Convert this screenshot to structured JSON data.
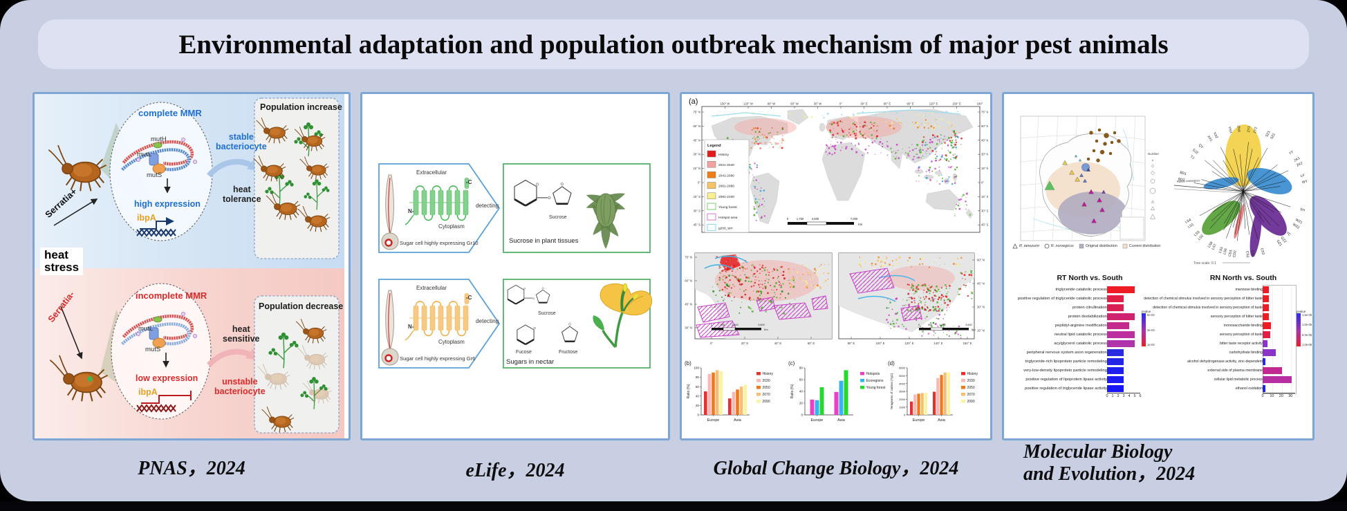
{
  "title": "Environmental adaptation and population outbreak mechanism of major pest animals",
  "citations": {
    "pnas": "PNAS，2024",
    "elife": "eLife，2024",
    "gcb": "Global Change Biology，2024",
    "mbe_line1": "Molecular Biology",
    "mbe_line2": "and Evolution，2024"
  },
  "pnas": {
    "heat_stress_line1": "heat",
    "heat_stress_line2": "stress",
    "top": {
      "serratia": "Serratia+",
      "mmr": "complete MMR",
      "muth": "mutH",
      "mutl": "mutL",
      "muts": "mutS",
      "expression": "high expression",
      "gene": "ibpA",
      "bacteriocyte_line1": "stable",
      "bacteriocyte_line2": "bacteriocyte",
      "heat_line1": "heat",
      "heat_line2": "tolerance",
      "population": "Population increase"
    },
    "bottom": {
      "serratia": "Serratia-",
      "mmr": "incomplete MMR",
      "mutl": "mutL",
      "muts": "mutS",
      "expression": "low expression",
      "gene": "ibpA",
      "bacteriocyte_line1": "unstable",
      "bacteriocyte_line2": "bacteriocyte",
      "heat_line1": "heat",
      "heat_line2": "sensitive",
      "population": "Population decrease"
    }
  },
  "elife": {
    "rows": [
      {
        "extracellular": "Extracellular",
        "cytoplasm": "Cytoplasm",
        "n_term": "N-",
        "c_term": "-C",
        "cell_label": "Sugar cell highly expressing Gr10",
        "detecting": "detecting",
        "sugar1": "Sucrose",
        "caption": "Sucrose in plant tissues"
      },
      {
        "extracellular": "Extracellular",
        "cytoplasm": "Cytoplasm",
        "n_term": "N-",
        "c_term": "-C",
        "cell_label": "Sugar cell highly expressing Gr6",
        "detecting": "detecting",
        "sugar1": "Sucrose",
        "sugar2": "Fucose",
        "sugar3": "Fructose",
        "caption": "Sugars in nectar"
      }
    ]
  },
  "gcb": {
    "map_a": {
      "panel_label": "(a)",
      "legend_title": "Legend",
      "legend": [
        {
          "label": "History",
          "fill": "#e31b1c"
        },
        {
          "label": "2021-2040",
          "fill": "#f2a3a0"
        },
        {
          "label": "2041-2060",
          "fill": "#ef7d14"
        },
        {
          "label": "2061-2080",
          "fill": "#f6c464"
        },
        {
          "label": "2081-2100",
          "fill": "#f8f08e"
        },
        {
          "label": "Young forest",
          "stroke": "#93d487"
        },
        {
          "label": "Hotspot area",
          "stroke": "#dd8fdd"
        },
        {
          "label": "g200_terr",
          "stroke": "#9adcf0"
        }
      ],
      "lon_ticks": [
        "150° W",
        "120° W",
        "90° W",
        "60° W",
        "30° W",
        "0°",
        "30° E",
        "60° E",
        "90° E",
        "120° E",
        "150° E",
        "180°"
      ],
      "lat_ticks": [
        "75° N",
        "60° N",
        "45° N",
        "30° N",
        "15° N",
        "0°",
        "15° S",
        "30° S",
        "45° S"
      ],
      "scale_ticks": [
        "0",
        "1,750",
        "3,500",
        "7,000"
      ],
      "scale_unit": "Km"
    },
    "map_eu": {
      "lat_ticks": [
        "75° N",
        "60° N",
        "45° N",
        "30° N"
      ],
      "lon_ticks": [
        "0°",
        "20° E",
        "40° E",
        "60° E"
      ],
      "scale_ticks": [
        "0",
        "900",
        "1,800",
        "3,600"
      ],
      "scale_unit": "Km"
    },
    "map_asia": {
      "lat_ticks": [
        "60° N",
        "45° N",
        "30° N",
        "15° N"
      ],
      "lon_ticks": [
        "80° E",
        "100° E",
        "120° E",
        "140° E",
        "160° E"
      ],
      "scale_ticks": [
        "0",
        "900",
        "1,800",
        "3,600"
      ],
      "scale_unit": "Km"
    }
  },
  "mbe": {
    "map": {
      "number_legend_title": "Number",
      "legend": [
        {
          "symbol": "triangle",
          "label": "R. tanezumi"
        },
        {
          "symbol": "circle",
          "label": "R. norvegicus"
        },
        {
          "symbol": "square_gray",
          "label": "Original distribution"
        },
        {
          "symbol": "square_tan",
          "label": "Current distribution"
        }
      ]
    },
    "tree": {
      "outgroup": "Rattus norvegicus",
      "scale_label": "Tree scale: 0.1",
      "tips": [
        {
          "t": "BD2",
          "a": -80
        },
        {
          "t": "BD1",
          "a": -74
        },
        {
          "t": "TJ",
          "a": -57
        },
        {
          "t": "SJZ",
          "a": -51
        },
        {
          "t": "QY",
          "a": -44
        },
        {
          "t": "XA1",
          "a": -33
        },
        {
          "t": "XA2",
          "a": -27
        },
        {
          "t": "YNX",
          "a": -13
        },
        {
          "t": "ZNX",
          "a": -5
        },
        {
          "t": "ZY1",
          "a": 6
        },
        {
          "t": "ZY2",
          "a": 12
        },
        {
          "t": "SZ1",
          "a": 24
        },
        {
          "t": "SZ2",
          "a": 29
        },
        {
          "t": "TY",
          "a": 52
        },
        {
          "t": "ZK1",
          "a": 60
        },
        {
          "t": "ZK2",
          "a": 65
        },
        {
          "t": "LF",
          "a": 76
        },
        {
          "t": "WT",
          "a": 82
        },
        {
          "t": "SH",
          "a": 108
        },
        {
          "t": "WZ1",
          "a": 119
        },
        {
          "t": "WZ2",
          "a": 124
        },
        {
          "t": "YC",
          "a": 134
        },
        {
          "t": "GZ2",
          "a": 141
        },
        {
          "t": "GZ1",
          "a": 146
        },
        {
          "t": "CS3",
          "a": 163
        },
        {
          "t": "CS1",
          "a": 172
        },
        {
          "t": "CS2",
          "a": 177
        },
        {
          "t": "CD2",
          "a": 187
        },
        {
          "t": "CD1",
          "a": 191
        },
        {
          "t": "LS6",
          "a": 196
        },
        {
          "t": "LS5",
          "a": 200
        },
        {
          "t": "LS7",
          "a": 207
        },
        {
          "t": "LS8",
          "a": 211
        },
        {
          "t": "LS2",
          "a": 222
        },
        {
          "t": "LS3",
          "a": 227
        },
        {
          "t": "LS1",
          "a": 236
        },
        {
          "t": "LS4",
          "a": 241
        }
      ]
    }
  },
  "chart_data": [
    {
      "id": "gcb_b",
      "type": "bar",
      "panel_label": "(b)",
      "ylabel": "Ratio (%)",
      "ylim": [
        0,
        100
      ],
      "yticks": [
        0,
        20,
        40,
        60,
        80,
        100
      ],
      "categories": [
        "Europe",
        "Asia"
      ],
      "series": [
        {
          "name": "History",
          "color": "#e8312f",
          "values": [
            50,
            35
          ]
        },
        {
          "name": "2030",
          "color": "#f8b8b6",
          "values": [
            87,
            49
          ]
        },
        {
          "name": "2050",
          "color": "#f07818",
          "values": [
            90,
            54
          ]
        },
        {
          "name": "2070",
          "color": "#f7bd72",
          "values": [
            95,
            60
          ]
        },
        {
          "name": "2090",
          "color": "#faf3a1",
          "values": [
            93,
            64
          ]
        }
      ]
    },
    {
      "id": "gcb_c",
      "type": "bar",
      "panel_label": "(c)",
      "ylabel": "Ratio (%)",
      "ylim": [
        0,
        80
      ],
      "yticks": [
        0,
        20,
        40,
        60,
        80
      ],
      "categories": [
        "Europe",
        "Asia"
      ],
      "series": [
        {
          "name": "Hotspots",
          "color": "#ee3ec8",
          "values": [
            26,
            39
          ]
        },
        {
          "name": "Ecoregions",
          "color": "#35b5ea",
          "values": [
            25,
            58
          ]
        },
        {
          "name": "Young forest",
          "color": "#27d82e",
          "values": [
            47,
            76
          ]
        }
      ]
    },
    {
      "id": "gcb_d",
      "type": "bar",
      "panel_label": "(d)",
      "ylabel": "Teragrams of carbon (TgC)",
      "ylim": [
        0,
        6000
      ],
      "yticks": [
        0,
        1000,
        2000,
        3000,
        4000,
        5000,
        6000
      ],
      "categories": [
        "Europe",
        "Asia"
      ],
      "series": [
        {
          "name": "History",
          "color": "#e8312f",
          "values": [
            1700,
            2950
          ]
        },
        {
          "name": "2030",
          "color": "#f8b8b6",
          "values": [
            2600,
            4700
          ]
        },
        {
          "name": "2050",
          "color": "#f07818",
          "values": [
            2700,
            5100
          ]
        },
        {
          "name": "2070",
          "color": "#f7bd72",
          "values": [
            2800,
            5400
          ]
        },
        {
          "name": "2090",
          "color": "#faf3a1",
          "values": [
            2800,
            5400
          ]
        }
      ]
    },
    {
      "id": "mbe_rt",
      "type": "bar-horizontal",
      "title": "RT North vs. South",
      "xmax": 6,
      "xticks": [
        0,
        1,
        2,
        3,
        4,
        5,
        6
      ],
      "legend_title": "pvalue",
      "legend_ticks": [
        "5e-04",
        "3e-04",
        "1e-04"
      ],
      "items": [
        {
          "label": "triglyceride catabolic process",
          "value": 5.0,
          "color": "#ee1c25"
        },
        {
          "label": "positive regulation of triglyceride catabolic process",
          "value": 3.0,
          "color": "#e01e46"
        },
        {
          "label": "protein citrullination",
          "value": 3.0,
          "color": "#d82055"
        },
        {
          "label": "protein destabilization",
          "value": 5.0,
          "color": "#cf2372"
        },
        {
          "label": "peptidyl-arginine modification",
          "value": 4.0,
          "color": "#c42a8e"
        },
        {
          "label": "neutral lipid catabolic process",
          "value": 5.0,
          "color": "#bb2f9e"
        },
        {
          "label": "acylglycerol catabolic process",
          "value": 5.0,
          "color": "#b133ab"
        },
        {
          "label": "peripheral nervous system axon regeneration",
          "value": 3.0,
          "color": "#2a2ae0"
        },
        {
          "label": "triglyceride-rich lipoprotein particle remodeling",
          "value": 3.0,
          "color": "#2525e6"
        },
        {
          "label": "very-low-density lipoprotein particle remodeling",
          "value": 3.0,
          "color": "#2020ec"
        },
        {
          "label": "positive regulation of lipoprotein lipase activity",
          "value": 3.0,
          "color": "#1b1bf2"
        },
        {
          "label": "positive regulation of triglyceride lipase activity",
          "value": 3.0,
          "color": "#1616f8"
        }
      ]
    },
    {
      "id": "mbe_rn",
      "type": "bar-horizontal",
      "title": "RN North vs. South",
      "xmax": 35,
      "xticks": [
        0,
        10,
        20,
        30
      ],
      "legend_title": "pvalue",
      "legend_ticks": [
        "1.5e-05",
        "1.0e-05",
        "5.0e-06",
        "1.0e-06"
      ],
      "items": [
        {
          "label": "mannose binding",
          "value": 7,
          "color": "#ee1c25"
        },
        {
          "label": "detection of chemical stimulus involved in sensory perception of bitter taste",
          "value": 7,
          "color": "#ee1c25"
        },
        {
          "label": "detection of chemical stimulus involved in sensory perception of taste",
          "value": 7,
          "color": "#ee1c25"
        },
        {
          "label": "sensory perception of bitter taste",
          "value": 7,
          "color": "#ee1c25"
        },
        {
          "label": "monosaccharide binding",
          "value": 9,
          "color": "#ee1c25"
        },
        {
          "label": "sensory perception of taste",
          "value": 8,
          "color": "#e01e46"
        },
        {
          "label": "bitter taste receptor activity",
          "value": 5,
          "color": "#8a35c8"
        },
        {
          "label": "carbohydrate binding",
          "value": 14,
          "color": "#8a35c8"
        },
        {
          "label": "alcohol dehydrogenase activity, zinc-dependent",
          "value": 3,
          "color": "#2a2ae0"
        },
        {
          "label": "external side of plasma membrane",
          "value": 21,
          "color": "#c02a90"
        },
        {
          "label": "cellular lipid metabolic process",
          "value": 31,
          "color": "#b62fa0"
        },
        {
          "label": "ethanol oxidation",
          "value": 3,
          "color": "#2222e8"
        }
      ]
    }
  ]
}
